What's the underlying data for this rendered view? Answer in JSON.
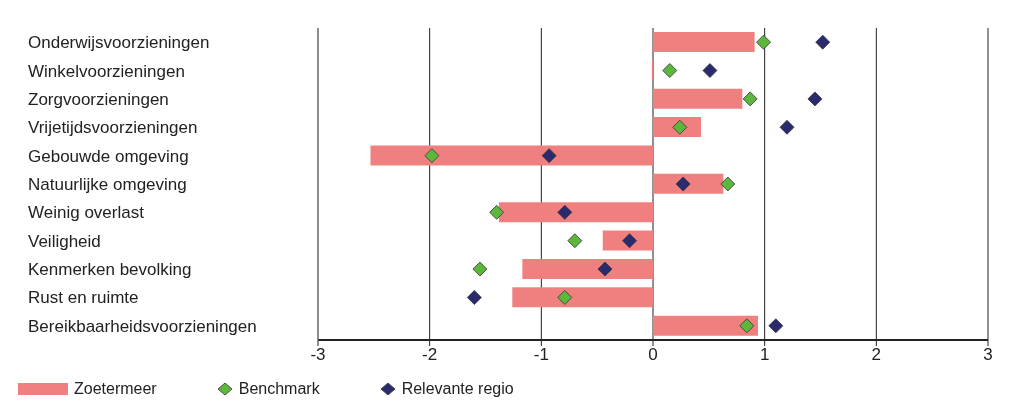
{
  "chart_data": {
    "type": "bar",
    "orientation": "horizontal",
    "categories": [
      "Onderwijsvoorzieningen",
      "Winkelvoorzieningen",
      "Zorgvoorzieningen",
      "Vrijetijdsvoorzieningen",
      "Gebouwde omgeving",
      "Natuurlijke omgeving",
      "Weinig overlast",
      "Veiligheid",
      "Kenmerken bevolking",
      "Rust en ruimte",
      "Bereikbaarheidsvoorzieningen"
    ],
    "series": [
      {
        "name": "Zoetermeer",
        "color": "#f08080",
        "values": [
          0.91,
          -0.01,
          0.8,
          0.43,
          -2.53,
          0.63,
          -1.38,
          -0.45,
          -1.17,
          -1.26,
          0.94
        ]
      },
      {
        "name": "Benchmark",
        "type": "scatter",
        "color": "#5cb83c",
        "values": [
          0.99,
          0.15,
          0.87,
          0.24,
          -1.98,
          0.67,
          -1.4,
          -0.7,
          -1.55,
          -0.79,
          0.84
        ]
      },
      {
        "name": "Relevante regio",
        "type": "scatter",
        "color": "#2a2a6e",
        "values": [
          1.52,
          0.51,
          1.45,
          1.2,
          -0.93,
          0.27,
          -0.79,
          -0.21,
          -0.43,
          -1.6,
          1.1
        ]
      }
    ],
    "marker": "diamond",
    "xlim": [
      -3,
      3
    ],
    "xticks": [
      -3,
      -2,
      -1,
      0,
      1,
      2,
      3
    ],
    "grid": "x",
    "legend": "bottom left"
  }
}
